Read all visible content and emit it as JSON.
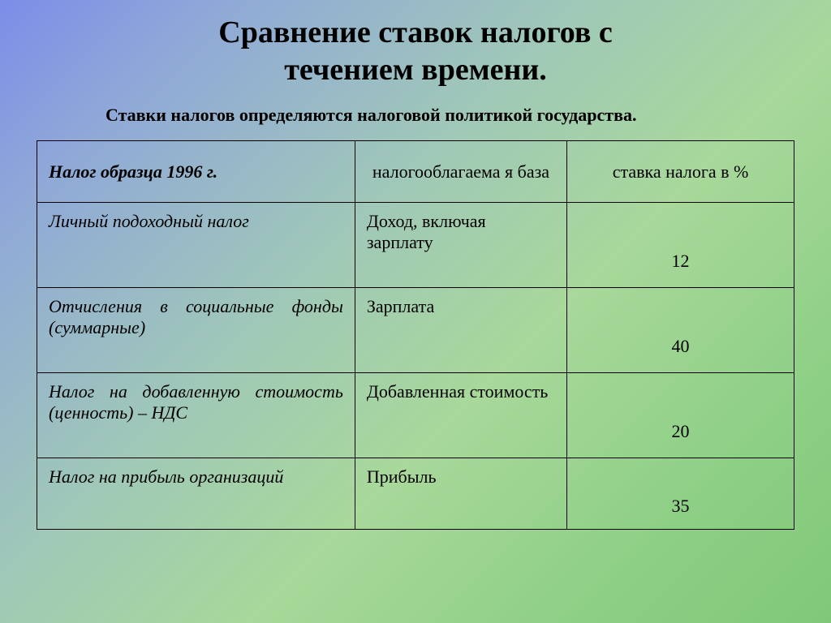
{
  "title_line1": "Сравнение ставок налогов с",
  "title_line2": "течением времени.",
  "subtitle": "Ставки налогов определяются налоговой политикой государства.",
  "table": {
    "headers": {
      "tax": "Налог образца 1996 г.",
      "base": "налогооблагаема\nя база",
      "rate": "ставка налога в %"
    },
    "rows": [
      {
        "tax": "Личный подоходный налог",
        "base": "Доход, включая зарплату",
        "rate": "12"
      },
      {
        "tax": "Отчисления в социальные фонды (суммарные)",
        "base": "Зарплата",
        "rate": "40"
      },
      {
        "tax": "Налог на добавленную стоимость (ценность) – НДС",
        "base": "Добавленная стоимость",
        "rate": "20"
      },
      {
        "tax": "Налог на прибыль организаций",
        "base": "Прибыль",
        "rate": "35"
      }
    ]
  },
  "colors": {
    "text": "#000000",
    "border": "#000000",
    "bg_start": "#7b8de8",
    "bg_end": "#80c878"
  }
}
